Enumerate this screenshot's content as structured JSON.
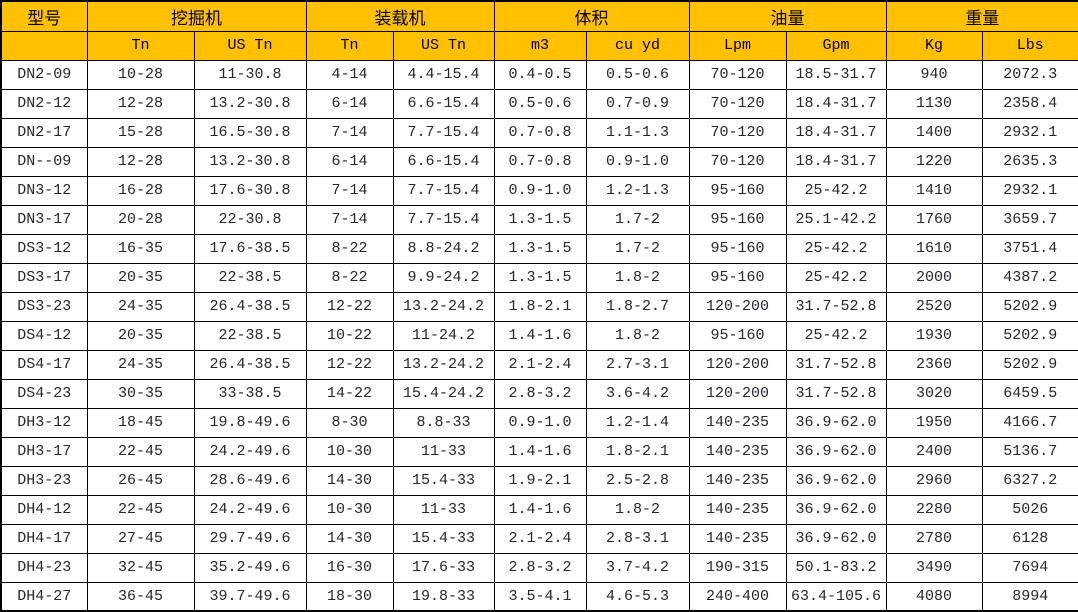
{
  "colors": {
    "header_bg": "#FFC000",
    "grid": "#000000",
    "text": "#26262e"
  },
  "table": {
    "header": {
      "model_label": "型号",
      "empty": "",
      "groups": [
        {
          "label": "挖掘机"
        },
        {
          "label": "装载机"
        },
        {
          "label": "体积"
        },
        {
          "label": "油量"
        },
        {
          "label": "重量"
        }
      ],
      "units": [
        "Tn",
        "US Tn",
        "Tn",
        "US Tn",
        "m3",
        "cu yd",
        "Lpm",
        "Gpm",
        "Kg",
        "Lbs"
      ]
    },
    "rows": [
      [
        "DN2-09",
        "10-28",
        "11-30.8",
        "4-14",
        "4.4-15.4",
        "0.4-0.5",
        "0.5-0.6",
        "70-120",
        "18.5-31.7",
        "940",
        "2072.3"
      ],
      [
        "DN2-12",
        "12-28",
        "13.2-30.8",
        "6-14",
        "6.6-15.4",
        "0.5-0.6",
        "0.7-0.9",
        "70-120",
        "18.4-31.7",
        "1130",
        "2358.4"
      ],
      [
        "DN2-17",
        "15-28",
        "16.5-30.8",
        "7-14",
        "7.7-15.4",
        "0.7-0.8",
        "1.1-1.3",
        "70-120",
        "18.4-31.7",
        "1400",
        "2932.1"
      ],
      [
        "DN--09",
        "12-28",
        "13.2-30.8",
        "6-14",
        "6.6-15.4",
        "0.7-0.8",
        "0.9-1.0",
        "70-120",
        "18.4-31.7",
        "1220",
        "2635.3"
      ],
      [
        "DN3-12",
        "16-28",
        "17.6-30.8",
        "7-14",
        "7.7-15.4",
        "0.9-1.0",
        "1.2-1.3",
        "95-160",
        "25-42.2",
        "1410",
        "2932.1"
      ],
      [
        "DN3-17",
        "20-28",
        "22-30.8",
        "7-14",
        "7.7-15.4",
        "1.3-1.5",
        "1.7-2",
        "95-160",
        "25.1-42.2",
        "1760",
        "3659.7"
      ],
      [
        "DS3-12",
        "16-35",
        "17.6-38.5",
        "8-22",
        "8.8-24.2",
        "1.3-1.5",
        "1.7-2",
        "95-160",
        "25-42.2",
        "1610",
        "3751.4"
      ],
      [
        "DS3-17",
        "20-35",
        "22-38.5",
        "8-22",
        "9.9-24.2",
        "1.3-1.5",
        "1.8-2",
        "95-160",
        "25-42.2",
        "2000",
        "4387.2"
      ],
      [
        "DS3-23",
        "24-35",
        "26.4-38.5",
        "12-22",
        "13.2-24.2",
        "1.8-2.1",
        "1.8-2.7",
        "120-200",
        "31.7-52.8",
        "2520",
        "5202.9"
      ],
      [
        "DS4-12",
        "20-35",
        "22-38.5",
        "10-22",
        "11-24.2",
        "1.4-1.6",
        "1.8-2",
        "95-160",
        "25-42.2",
        "1930",
        "5202.9"
      ],
      [
        "DS4-17",
        "24-35",
        "26.4-38.5",
        "12-22",
        "13.2-24.2",
        "2.1-2.4",
        "2.7-3.1",
        "120-200",
        "31.7-52.8",
        "2360",
        "5202.9"
      ],
      [
        "DS4-23",
        "30-35",
        "33-38.5",
        "14-22",
        "15.4-24.2",
        "2.8-3.2",
        "3.6-4.2",
        "120-200",
        "31.7-52.8",
        "3020",
        "6459.5"
      ],
      [
        "DH3-12",
        "18-45",
        "19.8-49.6",
        "8-30",
        "8.8-33",
        "0.9-1.0",
        "1.2-1.4",
        "140-235",
        "36.9-62.0",
        "1950",
        "4166.7"
      ],
      [
        "DH3-17",
        "22-45",
        "24.2-49.6",
        "10-30",
        "11-33",
        "1.4-1.6",
        "1.8-2.1",
        "140-235",
        "36.9-62.0",
        "2400",
        "5136.7"
      ],
      [
        "DH3-23",
        "26-45",
        "28.6-49.6",
        "14-30",
        "15.4-33",
        "1.9-2.1",
        "2.5-2.8",
        "140-235",
        "36.9-62.0",
        "2960",
        "6327.2"
      ],
      [
        "DH4-12",
        "22-45",
        "24.2-49.6",
        "10-30",
        "11-33",
        "1.4-1.6",
        "1.8-2",
        "140-235",
        "36.9-62.0",
        "2280",
        "5026"
      ],
      [
        "DH4-17",
        "27-45",
        "29.7-49.6",
        "14-30",
        "15.4-33",
        "2.1-2.4",
        "2.8-3.1",
        "140-235",
        "36.9-62.0",
        "2780",
        "6128"
      ],
      [
        "DH4-23",
        "32-45",
        "35.2-49.6",
        "16-30",
        "17.6-33",
        "2.8-3.2",
        "3.7-4.2",
        "190-315",
        "50.1-83.2",
        "3490",
        "7694"
      ],
      [
        "DH4-27",
        "36-45",
        "39.7-49.6",
        "18-30",
        "19.8-33",
        "3.5-4.1",
        "4.6-5.3",
        "240-400",
        "63.4-105.6",
        "4080",
        "8994"
      ]
    ]
  }
}
